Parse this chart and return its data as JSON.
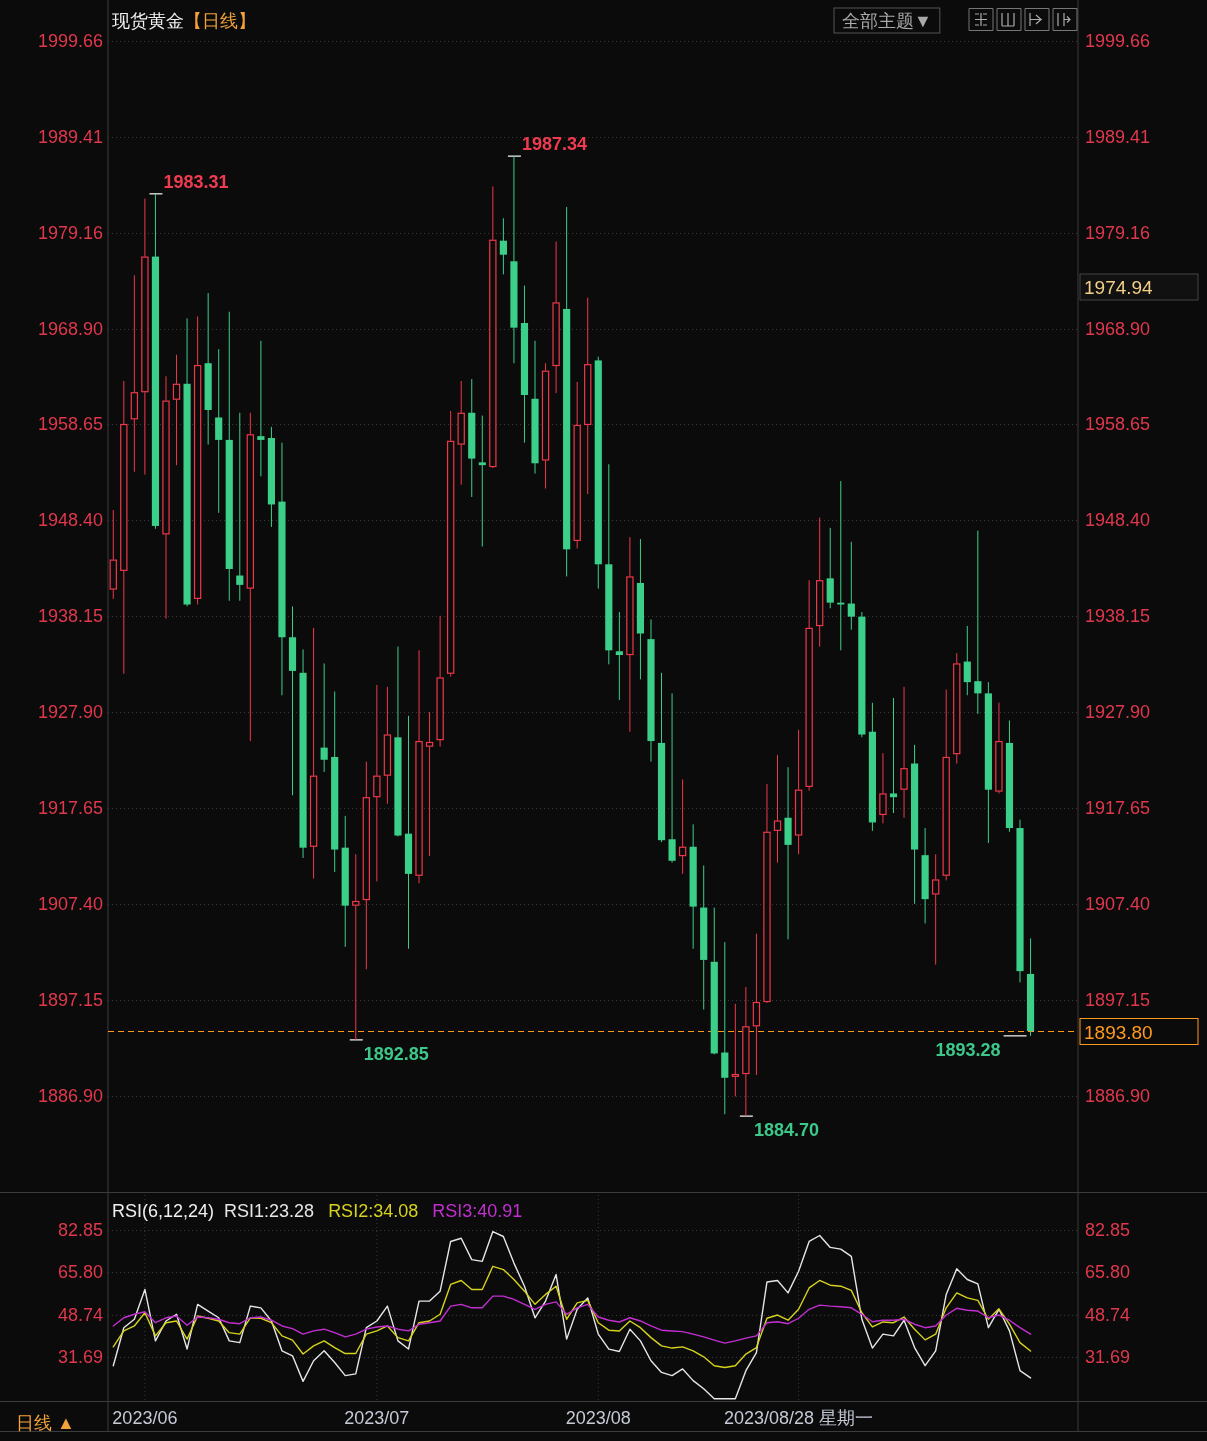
{
  "chart_data": [
    {
      "type": "candlestick",
      "title": "现货黄金",
      "subtitle": "【日线】",
      "categories": [
        null,
        null,
        null,
        null,
        null,
        null,
        null,
        null,
        null,
        null,
        null,
        null,
        null,
        null,
        null,
        null,
        null,
        null,
        null,
        null,
        null,
        null,
        null,
        null,
        null,
        null,
        null,
        null,
        null,
        null,
        null,
        null,
        null,
        null,
        null,
        null,
        null,
        null,
        null,
        null,
        null,
        null,
        null,
        null,
        null,
        null,
        null,
        null,
        null,
        null,
        null,
        null,
        null,
        null,
        null,
        null,
        null,
        null,
        null,
        null,
        null,
        null,
        null,
        null,
        null,
        null,
        null,
        null,
        null,
        null,
        null,
        null,
        null,
        null,
        null,
        null,
        null,
        null,
        null,
        null,
        null,
        null,
        null,
        null,
        null,
        null,
        null,
        null,
        null,
        null,
        null,
        null
      ],
      "ohlc": [
        [
          1941.0,
          1949.5,
          1940.0,
          1944.2
        ],
        [
          1943.0,
          1963.3,
          1932.0,
          1958.7
        ],
        [
          1959.2,
          1974.6,
          1953.6,
          1962.1
        ],
        [
          1962.1,
          1982.8,
          1953.3,
          1976.6
        ],
        [
          1976.6,
          1983.31,
          1947.5,
          1947.8
        ],
        [
          1946.9,
          1963.8,
          1937.9,
          1961.2
        ],
        [
          1961.3,
          1966.1,
          1954.3,
          1963.0
        ],
        [
          1963.0,
          1970.0,
          1939.2,
          1939.4
        ],
        [
          1940.0,
          1970.2,
          1939.4,
          1965.0
        ],
        [
          1965.2,
          1972.7,
          1956.5,
          1960.2
        ],
        [
          1959.4,
          1966.7,
          1949.2,
          1957.0
        ],
        [
          1957.0,
          1970.7,
          1939.8,
          1943.2
        ],
        [
          1942.5,
          1959.9,
          1939.8,
          1941.5
        ],
        [
          1941.1,
          1959.9,
          1924.8,
          1957.6
        ],
        [
          1957.4,
          1967.6,
          1953.1,
          1957.0
        ],
        [
          1957.2,
          1958.4,
          1947.7,
          1950.1
        ],
        [
          1950.4,
          1956.7,
          1929.7,
          1935.9
        ],
        [
          1935.9,
          1939.2,
          1919.0,
          1932.3
        ],
        [
          1932.1,
          1934.6,
          1912.3,
          1913.4
        ],
        [
          1913.5,
          1936.9,
          1910.1,
          1921.1
        ],
        [
          1924.1,
          1933.1,
          1921.5,
          1922.8
        ],
        [
          1923.1,
          1930.1,
          1910.8,
          1913.2
        ],
        [
          1913.4,
          1916.8,
          1902.8,
          1907.2
        ],
        [
          1907.2,
          1912.7,
          1892.85,
          1907.7
        ],
        [
          1907.8,
          1922.6,
          1900.4,
          1918.8
        ],
        [
          1918.8,
          1930.8,
          1909.8,
          1921.1
        ],
        [
          1921.1,
          1930.6,
          1918.1,
          1925.5
        ],
        [
          1925.2,
          1934.9,
          1914.6,
          1914.7
        ],
        [
          1914.9,
          1927.5,
          1902.6,
          1910.6
        ],
        [
          1910.4,
          1934.5,
          1909.6,
          1924.8
        ],
        [
          1924.2,
          1927.9,
          1912.5,
          1924.7
        ],
        [
          1924.9,
          1938.2,
          1924.2,
          1931.6
        ],
        [
          1932.0,
          1960.1,
          1931.7,
          1956.9
        ],
        [
          1956.5,
          1963.3,
          1952.2,
          1959.9
        ],
        [
          1959.9,
          1963.5,
          1950.9,
          1955.0
        ],
        [
          1954.6,
          1959.6,
          1945.6,
          1954.3
        ],
        [
          1954.1,
          1984.1,
          1954.0,
          1978.4
        ],
        [
          1978.3,
          1980.7,
          1974.7,
          1976.8
        ],
        [
          1976.1,
          1987.34,
          1965.2,
          1969.0
        ],
        [
          1969.5,
          1973.5,
          1956.7,
          1961.8
        ],
        [
          1961.4,
          1967.6,
          1953.4,
          1954.5
        ],
        [
          1954.8,
          1965.2,
          1951.8,
          1964.4
        ],
        [
          1964.9,
          1978.2,
          1962.0,
          1971.7
        ],
        [
          1971.0,
          1981.9,
          1942.4,
          1945.3
        ],
        [
          1946.2,
          1963.2,
          1945.4,
          1958.6
        ],
        [
          1958.6,
          1972.2,
          1951.2,
          1965.1
        ],
        [
          1965.5,
          1965.9,
          1941.1,
          1943.7
        ],
        [
          1943.7,
          1954.4,
          1933.0,
          1934.5
        ],
        [
          1934.4,
          1938.6,
          1929.2,
          1934.0
        ],
        [
          1934.0,
          1946.6,
          1925.8,
          1942.4
        ],
        [
          1941.7,
          1946.4,
          1931.4,
          1936.3
        ],
        [
          1935.7,
          1937.8,
          1922.6,
          1924.8
        ],
        [
          1924.6,
          1932.1,
          1914.0,
          1914.2
        ],
        [
          1914.3,
          1929.9,
          1911.8,
          1912.0
        ],
        [
          1912.5,
          1920.7,
          1910.6,
          1913.5
        ],
        [
          1913.5,
          1915.9,
          1902.6,
          1907.1
        ],
        [
          1907.0,
          1911.5,
          1896.1,
          1901.4
        ],
        [
          1901.2,
          1907.0,
          1891.3,
          1891.4
        ],
        [
          1891.5,
          1903.3,
          1884.9,
          1888.8
        ],
        [
          1888.9,
          1896.7,
          1886.8,
          1889.2
        ],
        [
          1889.2,
          1898.5,
          1884.7,
          1894.3
        ],
        [
          1894.3,
          1904.2,
          1889.1,
          1896.9
        ],
        [
          1896.9,
          1920.2,
          1896.8,
          1915.1
        ],
        [
          1915.2,
          1923.3,
          1911.8,
          1916.3
        ],
        [
          1916.6,
          1922.0,
          1903.6,
          1913.7
        ],
        [
          1914.7,
          1926.0,
          1912.7,
          1919.6
        ],
        [
          1919.9,
          1942.0,
          1919.5,
          1936.9
        ],
        [
          1937.1,
          1948.7,
          1934.9,
          1942.0
        ],
        [
          1942.2,
          1947.6,
          1939.0,
          1939.6
        ],
        [
          1939.6,
          1952.6,
          1934.5,
          1939.4
        ],
        [
          1939.5,
          1946.1,
          1936.7,
          1938.1
        ],
        [
          1938.1,
          1938.6,
          1925.2,
          1925.5
        ],
        [
          1925.8,
          1928.9,
          1915.2,
          1916.1
        ],
        [
          1916.9,
          1923.5,
          1916.0,
          1919.2
        ],
        [
          1919.2,
          1929.4,
          1917.1,
          1918.8
        ],
        [
          1919.6,
          1930.6,
          1916.6,
          1921.9
        ],
        [
          1922.4,
          1924.4,
          1907.4,
          1913.2
        ],
        [
          1912.6,
          1915.5,
          1905.3,
          1907.9
        ],
        [
          1908.4,
          1912.7,
          1900.9,
          1910.0
        ],
        [
          1910.4,
          1930.3,
          1909.9,
          1923.1
        ],
        [
          1923.4,
          1934.2,
          1922.4,
          1933.1
        ],
        [
          1933.3,
          1937.1,
          1929.7,
          1931.1
        ],
        [
          1931.2,
          1947.3,
          1927.7,
          1929.9
        ],
        [
          1929.9,
          1931.1,
          1913.9,
          1919.6
        ],
        [
          1919.4,
          1928.9,
          1919.2,
          1924.8
        ],
        [
          1924.6,
          1927.0,
          1915.1,
          1915.5
        ],
        [
          1915.5,
          1916.4,
          1899.0,
          1900.2
        ],
        [
          1899.9,
          1903.7,
          1893.28,
          1893.8
        ],
        null,
        null,
        null,
        null
      ],
      "colors": [
        "#f0384a",
        "#f0384a",
        "#f0384a",
        "#f0384a",
        "#3ccf8a",
        "#f0384a",
        "#f0384a",
        "#3ccf8a",
        "#f0384a",
        "#3ccf8a",
        "#3ccf8a",
        "#3ccf8a",
        "#3ccf8a",
        "#f0384a",
        "#3ccf8a",
        "#3ccf8a",
        "#3ccf8a",
        "#3ccf8a",
        "#3ccf8a",
        "#f0384a",
        "#3ccf8a",
        "#3ccf8a",
        "#3ccf8a",
        "#f0384a",
        "#f0384a",
        "#f0384a",
        "#f0384a",
        "#3ccf8a",
        "#3ccf8a",
        "#f0384a",
        "#f0384a",
        "#f0384a",
        "#f0384a",
        "#f0384a",
        "#3ccf8a",
        "#3ccf8a",
        "#f0384a",
        "#3ccf8a",
        "#3ccf8a",
        "#3ccf8a",
        "#3ccf8a",
        "#f0384a",
        "#f0384a",
        "#3ccf8a",
        "#f0384a",
        "#f0384a",
        "#3ccf8a",
        "#3ccf8a",
        "#3ccf8a",
        "#f0384a",
        "#3ccf8a",
        "#3ccf8a",
        "#3ccf8a",
        "#3ccf8a",
        "#f0384a",
        "#3ccf8a",
        "#3ccf8a",
        "#3ccf8a",
        "#3ccf8a",
        "#f0384a",
        "#f0384a",
        "#f0384a",
        "#f0384a",
        "#f0384a",
        "#3ccf8a",
        "#f0384a",
        "#f0384a",
        "#f0384a",
        "#3ccf8a",
        "#3ccf8a",
        "#3ccf8a",
        "#3ccf8a",
        "#3ccf8a",
        "#f0384a",
        "#3ccf8a",
        "#f0384a",
        "#3ccf8a",
        "#3ccf8a",
        "#f0384a",
        "#f0384a",
        "#f0384a",
        "#3ccf8a",
        "#3ccf8a",
        "#3ccf8a",
        "#f0384a",
        "#3ccf8a",
        "#3ccf8a",
        "#3ccf8a",
        null,
        null,
        null,
        null
      ],
      "ylim": [
        1876.8,
        2003.5
      ],
      "yticks": [
        1999.66,
        1989.41,
        1979.16,
        {
          "value": 1968.9,
          "label": "1968.90"
        },
        1958.65,
        {
          "value": 1948.4,
          "label": "1948.40"
        },
        1938.15,
        {
          "value": 1927.9,
          "label": "1927.90"
        },
        1917.65,
        {
          "value": 1907.4,
          "label": "1907.40"
        },
        1897.15,
        {
          "value": 1886.9,
          "label": "1886.90"
        }
      ],
      "y2lim": [
        1876.8,
        2003.5
      ],
      "y2ticks": [
        1999.66,
        1989.41,
        1979.16,
        {
          "value": 1968.9,
          "label": "1968.90"
        },
        1958.65,
        {
          "value": 1948.4,
          "label": "1948.40"
        },
        1938.15,
        {
          "value": 1927.9,
          "label": "1927.90"
        },
        1917.65,
        {
          "value": 1907.4,
          "label": "1907.40"
        },
        1897.15,
        {
          "value": 1886.9,
          "label": "1886.90"
        }
      ],
      "grid": "y",
      "ref_lines": [
        {
          "axis": "y",
          "value": 1893.8,
          "label": "1893.80",
          "color": "#ff9a1f",
          "line_style": "dashed"
        }
      ],
      "annotations": [
        "1983.31",
        "1987.34",
        "1892.85",
        "1884.70",
        "1893.28",
        "1974.94",
        "全部主题▼"
      ]
    },
    {
      "type": "line",
      "title": "RSI(6,12,24)",
      "categories": [
        null,
        null,
        null,
        "2023/06",
        null,
        null,
        null,
        null,
        null,
        null,
        null,
        null,
        null,
        null,
        null,
        null,
        null,
        null,
        null,
        null,
        null,
        null,
        null,
        null,
        null,
        "2023/07",
        null,
        null,
        null,
        null,
        null,
        null,
        null,
        null,
        null,
        null,
        null,
        null,
        null,
        null,
        null,
        null,
        null,
        null,
        null,
        null,
        "2023/08",
        null,
        null,
        null,
        null,
        null,
        null,
        null,
        null,
        null,
        null,
        null,
        null,
        null,
        null,
        null,
        null,
        null,
        null,
        "2023/08/28 星期一",
        null,
        null,
        null,
        null,
        null,
        null,
        null,
        null,
        null,
        null,
        null,
        null,
        null,
        null,
        null,
        null,
        null,
        null,
        null,
        null,
        null,
        null,
        null,
        null,
        null,
        null
      ],
      "series": [
        {
          "name": "RSI1:23.28",
          "color": "#e6e6e6",
          "values": [
            28.2,
            43.5,
            46.9,
            58.9,
            38.2,
            46.2,
            48.9,
            34.9,
            52.9,
            50.2,
            47.5,
            38.2,
            37.5,
            52.2,
            51.5,
            46.2,
            34.2,
            32.2,
            21.9,
            30.2,
            34.2,
            29.5,
            24.2,
            24.9,
            43.5,
            46.2,
            52.2,
            38.2,
            34.9,
            54.2,
            54.2,
            58.2,
            78.2,
            79.5,
            70.9,
            70.2,
            82.2,
            80.2,
            69.5,
            60.2,
            47.5,
            54.2,
            64.9,
            38.9,
            50.9,
            55.5,
            40.9,
            34.9,
            33.9,
            42.9,
            38.2,
            30.2,
            25.5,
            24.2,
            26.9,
            22.2,
            18.9,
            14.9,
            14.9,
            14.9,
            26.2,
            33.5,
            61.9,
            62.5,
            57.5,
            66.2,
            78.2,
            80.6,
            75.8,
            75.1,
            72.2,
            46.9,
            35.3,
            40.9,
            40.2,
            46.5,
            35.5,
            28.2,
            34.2,
            56.9,
            67.2,
            62.9,
            61.1,
            43.5,
            50.9,
            42.2,
            26.2,
            23.3,
            null,
            null,
            null,
            null
          ]
        },
        {
          "name": "RSI2:34.08",
          "color": "#d6d21e",
          "values": [
            35.8,
            42.2,
            44.2,
            49.5,
            40.2,
            45.5,
            46.2,
            38.9,
            48.2,
            47.3,
            46.2,
            41.5,
            40.9,
            47.5,
            47.3,
            45.5,
            40.2,
            38.5,
            32.9,
            36.2,
            38.2,
            35.5,
            33.1,
            33.1,
            40.9,
            42.2,
            44.2,
            39.5,
            38.2,
            45.5,
            46.2,
            48.9,
            60.9,
            62.5,
            58.9,
            58.9,
            68.2,
            66.9,
            62.9,
            58.2,
            52.9,
            56.9,
            60.2,
            46.9,
            53.5,
            54.5,
            45.5,
            42.5,
            42.2,
            46.2,
            43.5,
            39.5,
            36.2,
            35.3,
            35.8,
            34.2,
            31.8,
            28.2,
            27.5,
            28.2,
            32.9,
            35.5,
            47.3,
            48.6,
            46.5,
            50.9,
            59.5,
            62.5,
            60.6,
            60.2,
            58.5,
            49.5,
            43.8,
            45.8,
            45.5,
            47.8,
            42.9,
            38.6,
            40.9,
            51.5,
            57.5,
            55.5,
            54.5,
            46.9,
            51.1,
            44.9,
            37.5,
            34.1,
            null,
            null,
            null,
            null
          ]
        },
        {
          "name": "RSI3:40.91",
          "color": "#c22fd0",
          "values": [
            44.2,
            47.5,
            48.9,
            49.9,
            45.5,
            47.5,
            48.2,
            44.5,
            47.8,
            47.5,
            46.9,
            45.5,
            45.1,
            47.5,
            47.8,
            46.5,
            44.2,
            43.1,
            40.9,
            42.2,
            42.9,
            41.5,
            39.8,
            40.9,
            42.9,
            43.8,
            44.2,
            42.9,
            42.2,
            44.9,
            45.5,
            46.2,
            52.2,
            52.9,
            51.5,
            51.5,
            56.2,
            56.2,
            54.9,
            52.9,
            50.9,
            52.9,
            53.9,
            48.9,
            51.5,
            52.9,
            47.8,
            46.5,
            45.8,
            47.5,
            46.2,
            44.2,
            42.5,
            42.2,
            41.9,
            40.9,
            39.8,
            38.5,
            37.3,
            38.2,
            39.3,
            40.2,
            45.5,
            45.9,
            45.1,
            47.3,
            50.9,
            52.6,
            52.2,
            51.9,
            51.5,
            48.9,
            45.9,
            46.5,
            46.5,
            46.9,
            44.9,
            43.5,
            44.2,
            48.6,
            51.3,
            50.5,
            50.2,
            47.5,
            48.6,
            46.5,
            43.5,
            40.9,
            null,
            null,
            null,
            null
          ]
        }
      ],
      "ylim": [
        14.0,
        96.9
      ],
      "yticks": [
        82.85,
        {
          "value": 65.8,
          "label": "65.80"
        },
        48.74,
        31.69
      ],
      "y2lim": [
        14.0,
        96.9
      ],
      "y2ticks": [
        82.85,
        {
          "value": 65.8,
          "label": "65.80"
        },
        48.74,
        31.69
      ],
      "grid": true,
      "legend": "top left",
      "annotations": [
        "日线 ▲"
      ]
    }
  ]
}
